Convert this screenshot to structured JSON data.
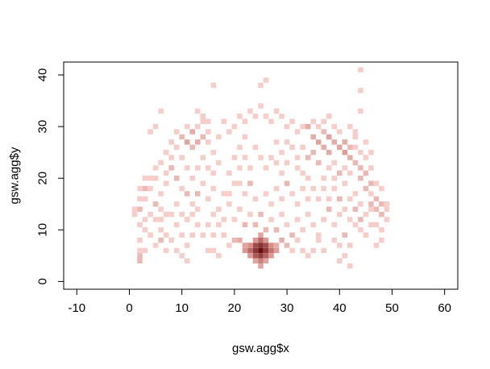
{
  "chart_data": {
    "type": "heatmap",
    "xlabel": "gsw.agg$x",
    "ylabel": "gsw.agg$y",
    "xlim": [
      -12.5,
      62.5
    ],
    "ylim": [
      -1.5,
      42.5
    ],
    "x_ticks": [
      -10,
      0,
      10,
      20,
      30,
      40,
      50,
      60
    ],
    "y_ticks": [
      0,
      10,
      20,
      30,
      40
    ],
    "cell_size": 1,
    "colors": {
      "low": "#f6cdc8",
      "mid": "#d9908a",
      "high": "#6a0e12",
      "axis": "#000000"
    },
    "max_count": 60,
    "cells": [
      [
        25,
        6,
        60
      ],
      [
        24,
        6,
        32
      ],
      [
        26,
        6,
        30
      ],
      [
        25,
        7,
        34
      ],
      [
        25,
        5,
        28
      ],
      [
        24,
        7,
        22
      ],
      [
        26,
        7,
        22
      ],
      [
        24,
        5,
        18
      ],
      [
        26,
        5,
        16
      ],
      [
        23,
        6,
        14
      ],
      [
        27,
        6,
        12
      ],
      [
        25,
        8,
        14
      ],
      [
        25,
        4,
        10
      ],
      [
        23,
        7,
        8
      ],
      [
        27,
        7,
        8
      ],
      [
        22,
        6,
        6
      ],
      [
        28,
        6,
        5
      ],
      [
        23,
        5,
        6
      ],
      [
        27,
        5,
        6
      ],
      [
        25,
        3,
        4
      ],
      [
        24,
        4,
        4
      ],
      [
        26,
        4,
        4
      ],
      [
        24,
        8,
        6
      ],
      [
        26,
        8,
        6
      ],
      [
        22,
        7,
        4
      ],
      [
        28,
        7,
        3
      ],
      [
        21,
        8,
        3
      ],
      [
        29,
        8,
        3
      ],
      [
        25,
        9,
        4
      ],
      [
        2,
        4,
        2
      ],
      [
        2,
        5,
        2
      ],
      [
        2,
        6,
        1
      ],
      [
        2,
        8,
        1
      ],
      [
        3,
        10,
        1
      ],
      [
        2,
        11,
        1
      ],
      [
        3,
        12,
        1
      ],
      [
        2,
        14,
        2
      ],
      [
        2,
        16,
        1
      ],
      [
        2,
        18,
        1
      ],
      [
        1,
        14,
        1
      ],
      [
        3,
        18,
        2
      ],
      [
        3,
        16,
        1
      ],
      [
        4,
        20,
        1
      ],
      [
        4,
        18,
        1
      ],
      [
        5,
        22,
        1
      ],
      [
        5,
        20,
        1
      ],
      [
        4,
        13,
        1
      ],
      [
        5,
        15,
        2
      ],
      [
        5,
        12,
        1
      ],
      [
        6,
        14,
        1
      ],
      [
        6,
        10,
        1
      ],
      [
        6,
        8,
        2
      ],
      [
        7,
        9,
        1
      ],
      [
        7,
        6,
        1
      ],
      [
        5,
        7,
        1
      ],
      [
        4,
        9,
        1
      ],
      [
        3,
        6,
        1
      ],
      [
        6,
        17,
        1
      ],
      [
        7,
        19,
        1
      ],
      [
        6,
        23,
        1
      ],
      [
        7,
        21,
        1
      ],
      [
        7,
        25,
        1
      ],
      [
        8,
        24,
        1
      ],
      [
        8,
        27,
        1
      ],
      [
        9,
        29,
        1
      ],
      [
        8,
        22,
        2
      ],
      [
        9,
        26,
        1
      ],
      [
        9,
        20,
        2
      ],
      [
        10,
        28,
        2
      ],
      [
        10,
        24,
        1
      ],
      [
        10,
        18,
        1
      ],
      [
        11,
        27,
        4
      ],
      [
        12,
        29,
        3
      ],
      [
        12,
        26,
        2
      ],
      [
        11,
        30,
        1
      ],
      [
        13,
        30,
        1
      ],
      [
        13,
        27,
        3
      ],
      [
        14,
        28,
        2
      ],
      [
        14,
        31,
        1
      ],
      [
        15,
        29,
        1
      ],
      [
        15,
        27,
        1
      ],
      [
        14,
        24,
        1
      ],
      [
        13,
        22,
        1
      ],
      [
        12,
        20,
        1
      ],
      [
        11,
        22,
        1
      ],
      [
        11,
        17,
        2
      ],
      [
        12,
        15,
        1
      ],
      [
        13,
        17,
        2
      ],
      [
        14,
        19,
        1
      ],
      [
        15,
        22,
        1
      ],
      [
        15,
        16,
        1
      ],
      [
        16,
        18,
        1
      ],
      [
        16,
        21,
        1
      ],
      [
        16,
        25,
        1
      ],
      [
        17,
        23,
        1
      ],
      [
        17,
        28,
        1
      ],
      [
        18,
        31,
        1
      ],
      [
        19,
        29,
        1
      ],
      [
        20,
        30,
        1
      ],
      [
        21,
        32,
        1
      ],
      [
        22,
        31,
        1
      ],
      [
        23,
        33,
        1
      ],
      [
        24,
        32,
        1
      ],
      [
        25,
        34,
        1
      ],
      [
        26,
        32,
        1
      ],
      [
        27,
        31,
        1
      ],
      [
        28,
        33,
        1
      ],
      [
        29,
        32,
        1
      ],
      [
        30,
        30,
        1
      ],
      [
        31,
        31,
        1
      ],
      [
        32,
        29,
        1
      ],
      [
        33,
        30,
        1
      ],
      [
        34,
        30,
        3
      ],
      [
        35,
        28,
        3
      ],
      [
        36,
        27,
        4
      ],
      [
        37,
        29,
        2
      ],
      [
        37,
        26,
        3
      ],
      [
        38,
        28,
        4
      ],
      [
        38,
        25,
        3
      ],
      [
        39,
        27,
        3
      ],
      [
        39,
        30,
        1
      ],
      [
        40,
        26,
        4
      ],
      [
        40,
        29,
        1
      ],
      [
        41,
        25,
        5
      ],
      [
        41,
        27,
        3
      ],
      [
        42,
        24,
        3
      ],
      [
        42,
        26,
        2
      ],
      [
        43,
        23,
        2
      ],
      [
        43,
        28,
        1
      ],
      [
        44,
        22,
        2
      ],
      [
        44,
        20,
        2
      ],
      [
        45,
        21,
        2
      ],
      [
        45,
        18,
        2
      ],
      [
        46,
        19,
        2
      ],
      [
        46,
        17,
        1
      ],
      [
        47,
        16,
        2
      ],
      [
        47,
        14,
        2
      ],
      [
        48,
        15,
        2
      ],
      [
        48,
        13,
        2
      ],
      [
        49,
        14,
        1
      ],
      [
        49,
        12,
        1
      ],
      [
        48,
        10,
        1
      ],
      [
        48,
        8,
        1
      ],
      [
        47,
        7,
        1
      ],
      [
        46,
        11,
        1
      ],
      [
        45,
        9,
        1
      ],
      [
        44,
        12,
        2
      ],
      [
        44,
        15,
        1
      ],
      [
        43,
        14,
        2
      ],
      [
        43,
        17,
        1
      ],
      [
        42,
        16,
        1
      ],
      [
        41,
        19,
        1
      ],
      [
        40,
        21,
        2
      ],
      [
        39,
        23,
        1
      ],
      [
        38,
        22,
        1
      ],
      [
        37,
        20,
        1
      ],
      [
        36,
        23,
        2
      ],
      [
        35,
        25,
        2
      ],
      [
        34,
        24,
        2
      ],
      [
        33,
        26,
        1
      ],
      [
        32,
        24,
        1
      ],
      [
        31,
        26,
        1
      ],
      [
        30,
        27,
        1
      ],
      [
        29,
        25,
        1
      ],
      [
        28,
        27,
        1
      ],
      [
        27,
        24,
        1
      ],
      [
        26,
        22,
        1
      ],
      [
        25,
        24,
        1
      ],
      [
        24,
        26,
        1
      ],
      [
        23,
        22,
        1
      ],
      [
        22,
        24,
        1
      ],
      [
        21,
        22,
        1
      ],
      [
        20,
        19,
        1
      ],
      [
        19,
        21,
        1
      ],
      [
        18,
        17,
        1
      ],
      [
        19,
        15,
        1
      ],
      [
        20,
        12,
        1
      ],
      [
        21,
        14,
        1
      ],
      [
        22,
        11,
        2
      ],
      [
        23,
        13,
        1
      ],
      [
        24,
        11,
        2
      ],
      [
        25,
        13,
        2
      ],
      [
        26,
        10,
        2
      ],
      [
        27,
        12,
        1
      ],
      [
        28,
        10,
        2
      ],
      [
        29,
        13,
        1
      ],
      [
        30,
        11,
        1
      ],
      [
        31,
        9,
        2
      ],
      [
        32,
        12,
        1
      ],
      [
        33,
        10,
        1
      ],
      [
        34,
        13,
        1
      ],
      [
        35,
        11,
        1
      ],
      [
        36,
        9,
        1
      ],
      [
        37,
        12,
        1
      ],
      [
        38,
        14,
        2
      ],
      [
        39,
        11,
        1
      ],
      [
        40,
        13,
        1
      ],
      [
        41,
        9,
        2
      ],
      [
        42,
        7,
        1
      ],
      [
        41,
        5,
        1
      ],
      [
        40,
        4,
        1
      ],
      [
        42,
        3,
        1
      ],
      [
        40,
        7,
        1
      ],
      [
        39,
        8,
        1
      ],
      [
        37,
        6,
        1
      ],
      [
        36,
        8,
        1
      ],
      [
        30,
        7,
        2
      ],
      [
        31,
        6,
        1
      ],
      [
        32,
        8,
        1
      ],
      [
        20,
        8,
        2
      ],
      [
        19,
        7,
        1
      ],
      [
        18,
        9,
        1
      ],
      [
        17,
        11,
        1
      ],
      [
        16,
        9,
        1
      ],
      [
        15,
        11,
        1
      ],
      [
        14,
        9,
        1
      ],
      [
        13,
        11,
        1
      ],
      [
        12,
        9,
        1
      ],
      [
        11,
        7,
        1
      ],
      [
        10,
        9,
        1
      ],
      [
        9,
        11,
        1
      ],
      [
        8,
        8,
        1
      ],
      [
        9,
        6,
        1
      ],
      [
        10,
        5,
        1
      ],
      [
        11,
        4,
        1
      ],
      [
        8,
        13,
        1
      ],
      [
        9,
        15,
        1
      ],
      [
        10,
        13,
        1
      ],
      [
        19,
        17,
        1
      ],
      [
        21,
        19,
        1
      ],
      [
        22,
        17,
        1
      ],
      [
        23,
        19,
        2
      ],
      [
        24,
        16,
        1
      ],
      [
        26,
        17,
        1
      ],
      [
        27,
        15,
        1
      ],
      [
        28,
        18,
        1
      ],
      [
        29,
        16,
        1
      ],
      [
        30,
        19,
        2
      ],
      [
        31,
        17,
        1
      ],
      [
        32,
        15,
        1
      ],
      [
        33,
        18,
        1
      ],
      [
        34,
        16,
        1
      ],
      [
        35,
        18,
        1
      ],
      [
        36,
        16,
        1
      ],
      [
        37,
        18,
        1
      ],
      [
        38,
        16,
        1
      ],
      [
        39,
        18,
        1
      ],
      [
        40,
        16,
        2
      ],
      [
        41,
        14,
        1
      ],
      [
        42,
        12,
        1
      ],
      [
        43,
        11,
        1
      ],
      [
        44,
        10,
        1
      ],
      [
        45,
        13,
        1
      ],
      [
        46,
        14,
        1
      ],
      [
        47,
        11,
        1
      ],
      [
        46,
        22,
        1
      ],
      [
        47,
        19,
        1
      ],
      [
        45,
        24,
        1
      ],
      [
        44,
        25,
        1
      ],
      [
        43,
        26,
        1
      ],
      [
        42,
        30,
        1
      ],
      [
        43,
        29,
        1
      ],
      [
        44,
        33,
        1
      ],
      [
        44,
        37,
        1
      ],
      [
        44,
        41,
        1
      ],
      [
        26,
        39,
        1
      ],
      [
        25,
        38,
        1
      ],
      [
        16,
        38,
        1
      ],
      [
        6,
        33,
        1
      ],
      [
        5,
        30,
        1
      ],
      [
        4,
        29,
        1
      ],
      [
        22,
        28,
        1
      ],
      [
        21,
        26,
        1
      ],
      [
        20,
        24,
        1
      ],
      [
        32,
        22,
        1
      ],
      [
        33,
        21,
        1
      ],
      [
        34,
        20,
        1
      ],
      [
        30,
        23,
        1
      ],
      [
        29,
        21,
        1
      ],
      [
        28,
        23,
        1
      ],
      [
        16,
        13,
        1
      ],
      [
        17,
        14,
        1
      ],
      [
        18,
        12,
        1
      ],
      [
        15,
        6,
        1
      ],
      [
        16,
        6,
        1
      ],
      [
        17,
        5,
        1
      ],
      [
        33,
        6,
        1
      ],
      [
        34,
        5,
        1
      ],
      [
        35,
        6,
        1
      ],
      [
        46,
        15,
        2
      ],
      [
        49,
        15,
        1
      ],
      [
        48,
        18,
        1
      ],
      [
        3,
        20,
        1
      ],
      [
        1,
        13,
        1
      ],
      [
        7,
        13,
        1
      ],
      [
        6,
        12,
        1
      ],
      [
        12,
        13,
        1
      ],
      [
        13,
        14,
        1
      ],
      [
        11,
        12,
        1
      ],
      [
        39,
        20,
        1
      ],
      [
        41,
        22,
        1
      ],
      [
        42,
        21,
        1
      ],
      [
        45,
        27,
        1
      ],
      [
        46,
        25,
        1
      ],
      [
        35,
        31,
        1
      ],
      [
        36,
        30,
        1
      ],
      [
        37,
        31,
        1
      ],
      [
        38,
        32,
        1
      ],
      [
        13,
        33,
        1
      ],
      [
        14,
        32,
        1
      ],
      [
        15,
        31,
        1
      ]
    ]
  }
}
